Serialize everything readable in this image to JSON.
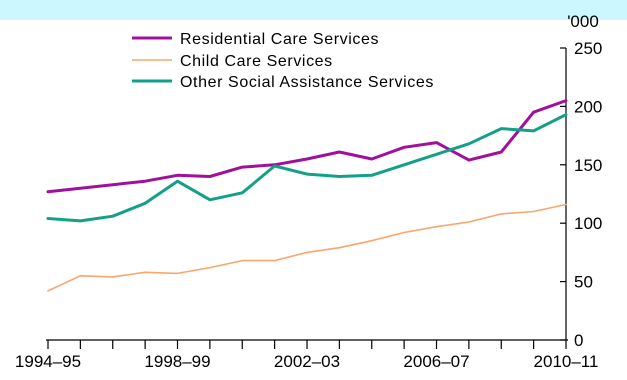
{
  "chart_data": {
    "type": "line",
    "title": "",
    "xlabel": "",
    "ylabel": "'000",
    "ylim": [
      0,
      250
    ],
    "yticks": [
      0,
      50,
      100,
      150,
      200,
      250
    ],
    "x": [
      "1994–95",
      "1995–96",
      "1996–97",
      "1997–98",
      "1998–99",
      "1999–00",
      "2000–01",
      "2001–02",
      "2002–03",
      "2003–04",
      "2004–05",
      "2005–06",
      "2006–07",
      "2007–08",
      "2008–09",
      "2009–10",
      "2010–11"
    ],
    "xtick_labels": [
      "1994–95",
      "1998–99",
      "2002–03",
      "2006–07",
      "2010–11"
    ],
    "grid": false,
    "legend": "top-left",
    "series": [
      {
        "name": "Residential Care Services",
        "color": "#a0109c",
        "values": [
          127,
          130,
          133,
          136,
          141,
          140,
          148,
          150,
          155,
          161,
          155,
          165,
          169,
          154,
          161,
          195,
          205
        ]
      },
      {
        "name": "Child Care Services",
        "color": "#f9a66c",
        "values": [
          42,
          55,
          54,
          58,
          57,
          62,
          68,
          68,
          75,
          79,
          85,
          92,
          97,
          101,
          108,
          110,
          116
        ]
      },
      {
        "name": "Other Social Assistance Services",
        "color": "#14a088",
        "values": [
          104,
          102,
          106,
          117,
          136,
          120,
          126,
          149,
          142,
          140,
          141,
          150,
          159,
          168,
          181,
          179,
          193
        ]
      }
    ]
  }
}
